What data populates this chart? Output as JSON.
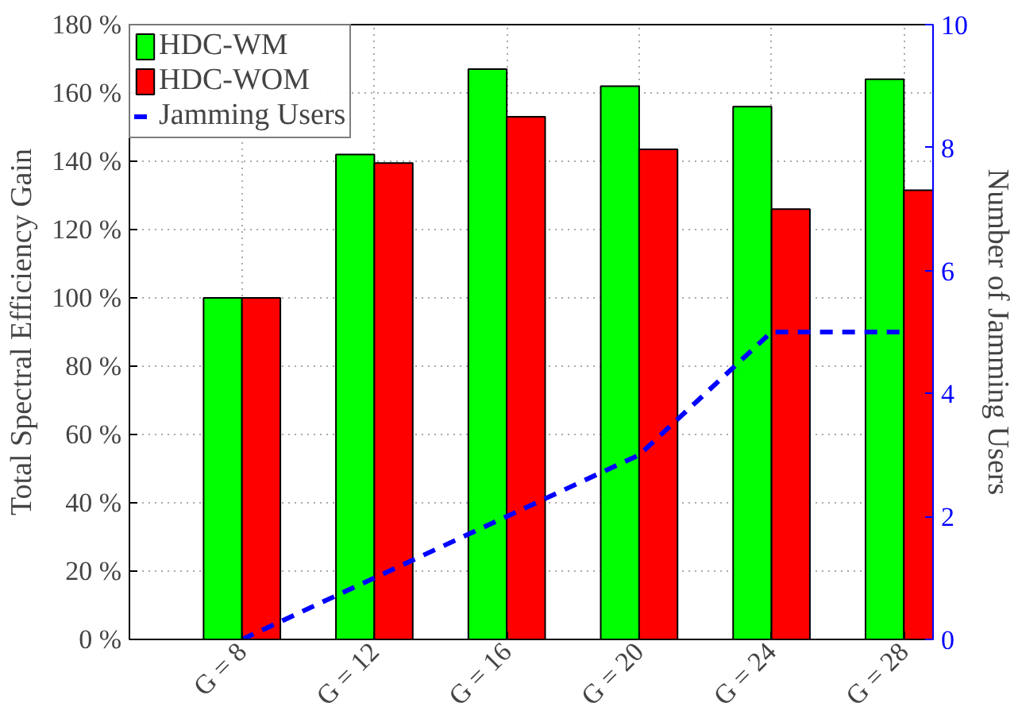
{
  "chart_data": {
    "type": "bar",
    "categories": [
      "G = 8",
      "G = 12",
      "G = 16",
      "G = 20",
      "G = 24",
      "G = 28"
    ],
    "ylabel": "Total Spectral Efficiency Gain",
    "y2label": "Number of Jamming Users",
    "series": [
      {
        "name": "HDC-WM",
        "color": "#00ff00",
        "values": [
          100,
          142,
          167,
          162,
          156,
          164
        ]
      },
      {
        "name": "HDC-WOM",
        "color": "#ff0000",
        "values": [
          100,
          139.5,
          153,
          143.5,
          126,
          131.5
        ]
      },
      {
        "name": "Jamming Users",
        "type": "line",
        "axis": "y2",
        "color": "#0000ff",
        "line_style": "dashed",
        "marker": "none",
        "values": [
          0,
          1,
          2,
          3,
          5,
          5
        ]
      }
    ],
    "ylim": [
      0,
      180
    ],
    "yticks": [
      {
        "value": 0,
        "label": "0 %"
      },
      {
        "value": 20,
        "label": "20 %"
      },
      {
        "value": 40,
        "label": "40 %"
      },
      {
        "value": 60,
        "label": "60 %"
      },
      {
        "value": 80,
        "label": "80 %"
      },
      {
        "value": 100,
        "label": "100 %"
      },
      {
        "value": 120,
        "label": "120 %"
      },
      {
        "value": 140,
        "label": "140 %"
      },
      {
        "value": 160,
        "label": "160 %"
      },
      {
        "value": 180,
        "label": "180 %"
      }
    ],
    "y2lim": [
      0,
      10
    ],
    "y2ticks": [
      0,
      2,
      4,
      6,
      8,
      10
    ],
    "grid": true,
    "legend": "top left"
  }
}
